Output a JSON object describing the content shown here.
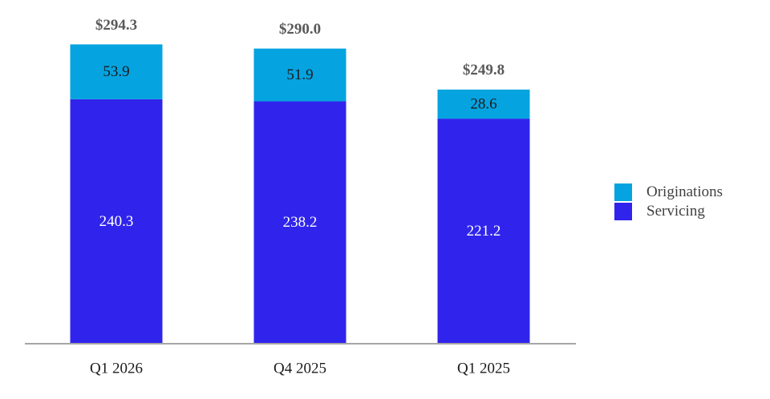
{
  "chart_data": {
    "type": "bar",
    "stacked": true,
    "categories": [
      "Q1 2026",
      "Q4 2025",
      "Q1 2025"
    ],
    "series": [
      {
        "name": "Servicing",
        "values": [
          240.3,
          238.2,
          221.2
        ],
        "color": "#3024EC",
        "label_color": "#ffffff"
      },
      {
        "name": "Originations",
        "values": [
          53.9,
          51.9,
          28.6
        ],
        "color": "#05A3E0",
        "label_color": "#1a1a1a"
      }
    ],
    "totals": [
      294.3,
      290.0,
      249.8
    ],
    "total_labels": [
      "$294.3",
      "$290.0",
      "$249.8"
    ],
    "title": "",
    "xlabel": "",
    "ylabel": "",
    "ylim": [
      0,
      315
    ],
    "grid": false,
    "legend_position": "right"
  },
  "legend": {
    "items": [
      {
        "label": "Originations",
        "color": "#05A3E0"
      },
      {
        "label": "Servicing",
        "color": "#3024EC"
      }
    ]
  }
}
